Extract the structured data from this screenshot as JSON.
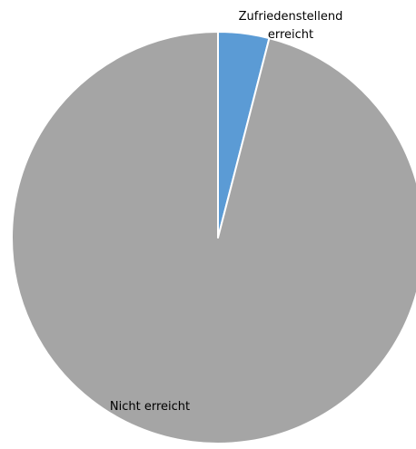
{
  "chart_data": {
    "type": "pie",
    "slices": [
      {
        "label": "Zufriedenstellend erreicht",
        "label_lines": [
          "Zufriedenstellend",
          "erreicht"
        ],
        "value": 4,
        "color": "#5b9bd5"
      },
      {
        "label": "Nicht erreicht",
        "label_lines": [
          "Nicht erreicht"
        ],
        "value": 96,
        "color": "#a5a5a5"
      }
    ],
    "start_angle_deg": 0,
    "direction": "clockwise",
    "slice_border_color": "#ffffff",
    "legend": "none"
  }
}
